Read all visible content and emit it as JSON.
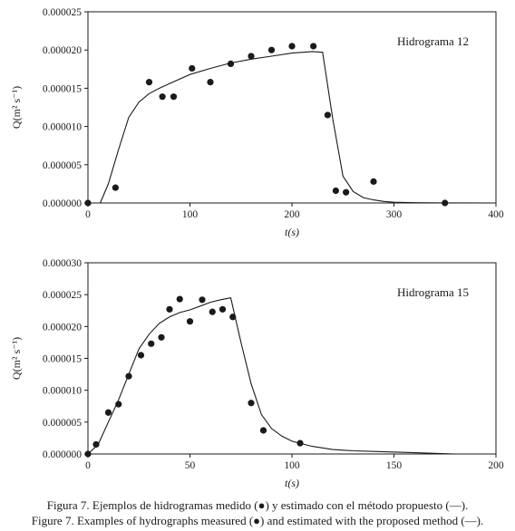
{
  "chart_data": [
    {
      "type": "scatter",
      "panel_label": "Hidrograma 12",
      "xlabel": "t(s)",
      "ylabel": "Q(m² s⁻¹)",
      "xlim": [
        0,
        400
      ],
      "ylim": [
        0,
        2.5e-05
      ],
      "xticks": [
        0,
        100,
        200,
        300,
        400
      ],
      "xtick_labels": [
        "0",
        "100",
        "200",
        "300",
        "400"
      ],
      "yticks": [
        0,
        5e-06,
        1e-05,
        1.5e-05,
        2e-05,
        2.5e-05
      ],
      "ytick_labels": [
        "0.000000",
        "0.000005",
        "0.000010",
        "0.000015",
        "0.000020",
        "0.000025"
      ],
      "series": [
        {
          "kind": "points",
          "x": [
            0,
            27,
            60,
            73,
            84,
            102,
            120,
            140,
            160,
            180,
            200,
            221,
            235,
            243,
            253,
            280,
            350
          ],
          "y": [
            0,
            2e-06,
            1.58e-05,
            1.39e-05,
            1.39e-05,
            1.76e-05,
            1.58e-05,
            1.82e-05,
            1.92e-05,
            2e-05,
            2.05e-05,
            2.05e-05,
            1.15e-05,
            1.6e-06,
            1.4e-06,
            2.8e-06,
            0
          ]
        },
        {
          "kind": "line",
          "x": [
            12,
            20,
            30,
            40,
            50,
            60,
            70,
            80,
            100,
            120,
            140,
            160,
            180,
            200,
            220,
            230,
            240,
            250,
            260,
            270,
            280,
            290,
            300,
            320,
            350,
            400
          ],
          "y": [
            0,
            2.5e-06,
            7e-06,
            1.12e-05,
            1.32e-05,
            1.43e-05,
            1.5e-05,
            1.56e-05,
            1.68e-05,
            1.76e-05,
            1.83e-05,
            1.88e-05,
            1.92e-05,
            1.96e-05,
            1.98e-05,
            1.97e-05,
            1.1e-05,
            3.5e-06,
            1.5e-06,
            7e-07,
            4e-07,
            2e-07,
            1e-07,
            3e-08,
            1e-08,
            0
          ]
        }
      ]
    },
    {
      "type": "scatter",
      "panel_label": "Hidrograma 15",
      "xlabel": "t(s)",
      "ylabel": "Q(m² s⁻¹)",
      "xlim": [
        0,
        200
      ],
      "ylim": [
        0,
        3e-05
      ],
      "xticks": [
        0,
        50,
        100,
        150,
        200
      ],
      "xtick_labels": [
        "0",
        "50",
        "100",
        "150",
        "200"
      ],
      "yticks": [
        0,
        5e-06,
        1e-05,
        1.5e-05,
        2e-05,
        2.5e-05,
        3e-05
      ],
      "ytick_labels": [
        "0.000000",
        "0.000005",
        "0.000010",
        "0.000015",
        "0.000020",
        "0.000025",
        "0.000030"
      ],
      "series": [
        {
          "kind": "points",
          "x": [
            0,
            4,
            10,
            15,
            20,
            26,
            31,
            36,
            40,
            45,
            50,
            56,
            61,
            66,
            71,
            80,
            86,
            104
          ],
          "y": [
            0,
            1.5e-06,
            6.5e-06,
            7.8e-06,
            1.22e-05,
            1.55e-05,
            1.73e-05,
            1.83e-05,
            2.27e-05,
            2.43e-05,
            2.08e-05,
            2.42e-05,
            2.23e-05,
            2.27e-05,
            2.15e-05,
            8e-06,
            3.7e-06,
            1.7e-06
          ]
        },
        {
          "kind": "line",
          "x": [
            0,
            5,
            10,
            15,
            20,
            25,
            30,
            35,
            40,
            45,
            50,
            55,
            60,
            65,
            70,
            75,
            80,
            85,
            90,
            95,
            100,
            110,
            120,
            130,
            140,
            160,
            180
          ],
          "y": [
            0,
            1.5e-06,
            5e-06,
            8.5e-06,
            1.25e-05,
            1.65e-05,
            1.88e-05,
            2.05e-05,
            2.15e-05,
            2.22e-05,
            2.26e-05,
            2.32e-05,
            2.38e-05,
            2.42e-05,
            2.45e-05,
            1.75e-05,
            1.1e-05,
            6.2e-06,
            4e-06,
            2.8e-06,
            2e-06,
            1.2e-06,
            7e-07,
            5e-07,
            4e-07,
            2e-07,
            0
          ]
        }
      ]
    }
  ],
  "caption": {
    "spanish": "Figura 7. Ejemplos de hidrogramas medido (●) y estimado con el método propuesto (—).",
    "english": "Figure 7. Examples of hydrographs measured (●) and estimated with the proposed method (—)."
  }
}
